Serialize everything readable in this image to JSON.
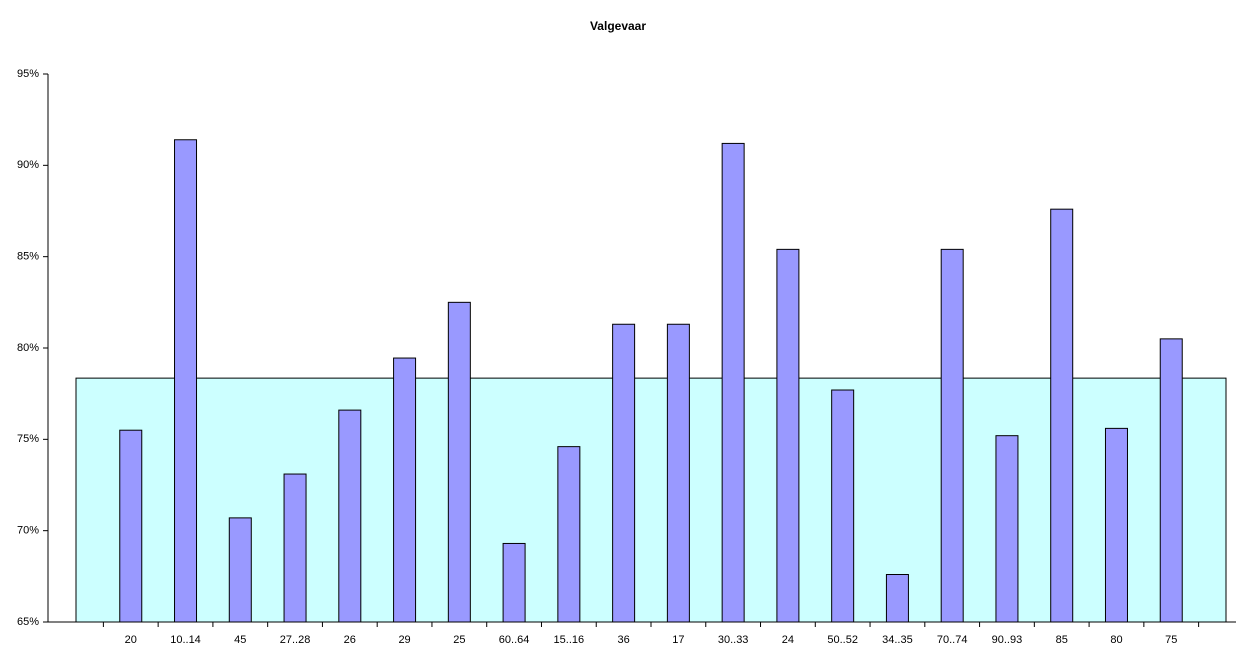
{
  "chart_data": {
    "type": "bar",
    "title": "Valgevaar",
    "categories": [
      null,
      "20",
      "10..14",
      "45",
      "27..28",
      "26",
      "29",
      "25",
      "60..64",
      "15..16",
      "36",
      "17",
      "30..33",
      "24",
      "50..52",
      "34..35",
      "70..74",
      "90..93",
      "85",
      "80",
      "75",
      null
    ],
    "series": [
      {
        "type": "area",
        "color": "#ccffff",
        "values": [
          78.35,
          78.35,
          78.35,
          78.35,
          78.35,
          78.35,
          78.35,
          78.35,
          78.35,
          78.35,
          78.35,
          78.35,
          78.35,
          78.35,
          78.35,
          78.35,
          78.35,
          78.35,
          78.35,
          78.35,
          78.35,
          78.35
        ]
      },
      {
        "type": "bar",
        "color": "#9999ff",
        "values": [
          null,
          75.5,
          91.4,
          70.7,
          73.1,
          76.6,
          79.45,
          82.5,
          69.3,
          74.6,
          81.3,
          81.3,
          91.2,
          85.4,
          77.7,
          67.6,
          85.4,
          75.2,
          87.6,
          75.6,
          80.5,
          null
        ]
      }
    ],
    "ylim": [
      65,
      95
    ],
    "yticks": [
      {
        "value": 65,
        "label": "65%"
      },
      {
        "value": 70,
        "label": "70%"
      },
      {
        "value": 75,
        "label": "75%"
      },
      {
        "value": 80,
        "label": "80%"
      },
      {
        "value": 85,
        "label": "85%"
      },
      {
        "value": 90,
        "label": "90%"
      },
      {
        "value": 95,
        "label": "95%"
      }
    ],
    "grid": false
  }
}
